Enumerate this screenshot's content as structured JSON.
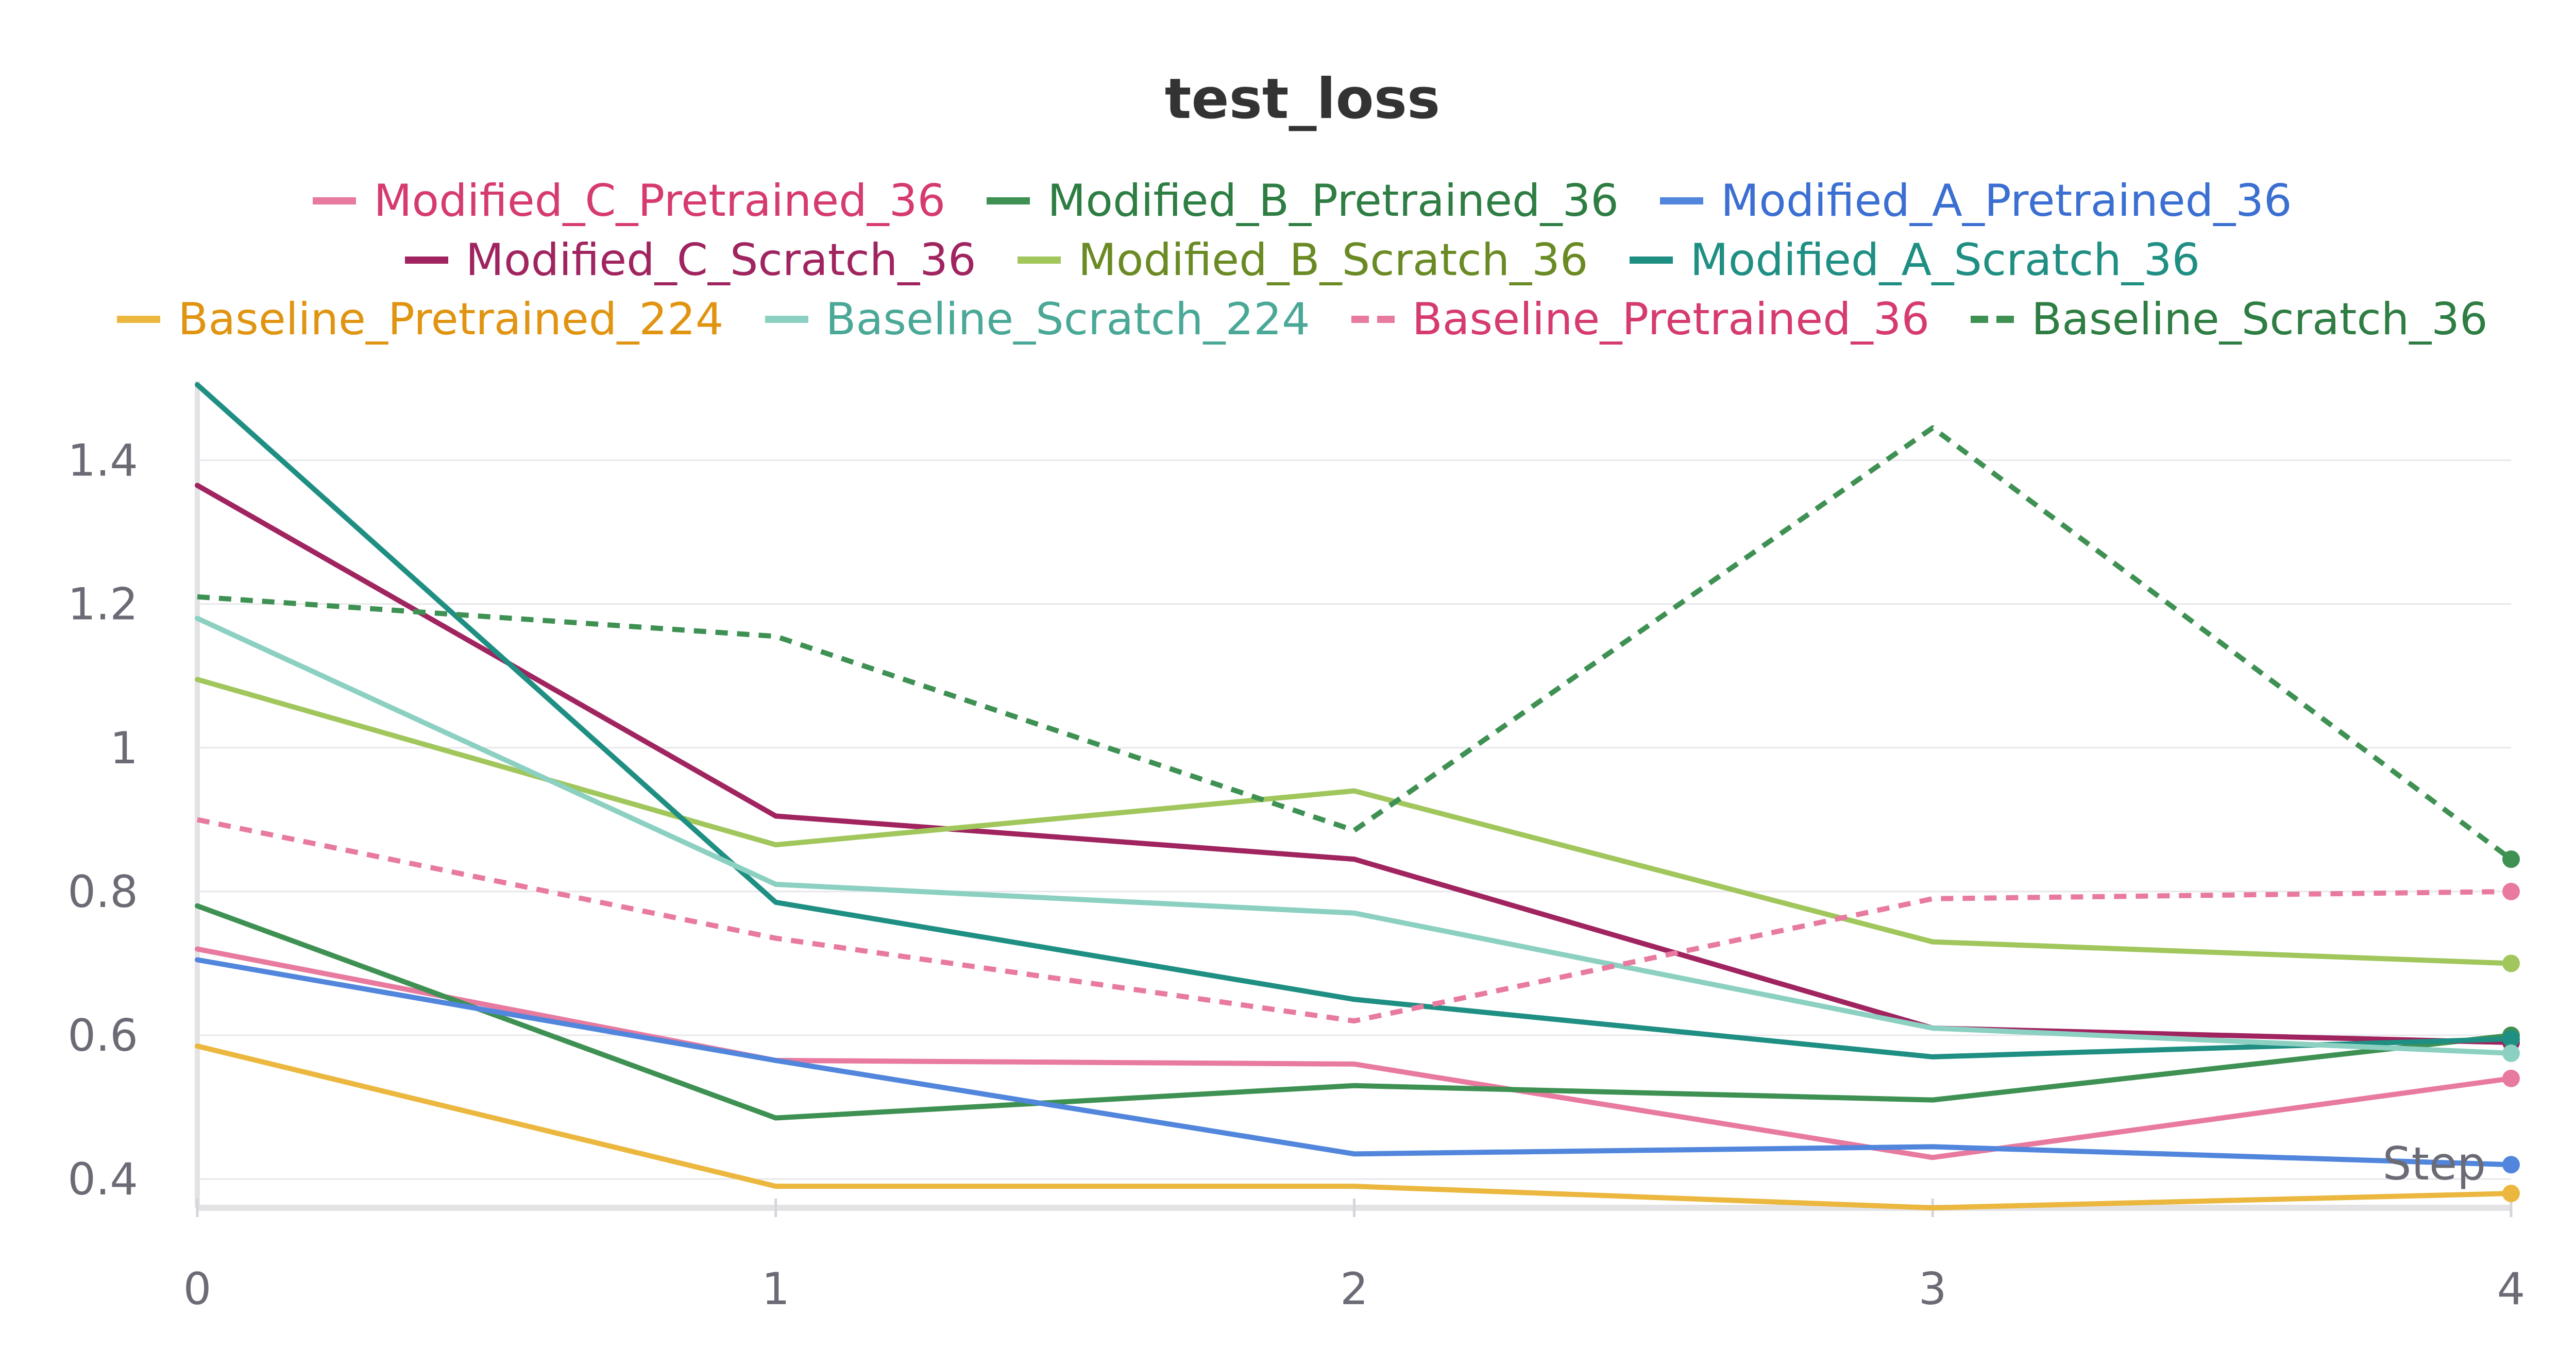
{
  "chart_data": {
    "type": "line",
    "title": "test_loss",
    "xlabel": "Step",
    "ylabel": "",
    "x": [
      0,
      1,
      2,
      3,
      4
    ],
    "x_ticks": [
      "0",
      "1",
      "2",
      "3",
      "4"
    ],
    "y_ticks": [
      "0.4",
      "0.6",
      "0.8",
      "1",
      "1.2",
      "1.4"
    ],
    "xlim": [
      0,
      4
    ],
    "ylim": [
      0.36,
      1.51
    ],
    "grid": true,
    "legend_position": "top",
    "series": [
      {
        "name": "Modified_C_Pretrained_36",
        "color": "#e87a9f",
        "text_color": "#d63b6e",
        "dashed": false,
        "values": [
          0.72,
          0.565,
          0.56,
          0.43,
          0.54
        ]
      },
      {
        "name": "Modified_B_Pretrained_36",
        "color": "#3e9153",
        "text_color": "#2e7d43",
        "dashed": false,
        "values": [
          0.78,
          0.485,
          0.53,
          0.51,
          0.6
        ]
      },
      {
        "name": "Modified_A_Pretrained_36",
        "color": "#5186dc",
        "text_color": "#3b6fd1",
        "dashed": false,
        "values": [
          0.705,
          0.565,
          0.435,
          0.445,
          0.42
        ]
      },
      {
        "name": "Modified_C_Scratch_36",
        "color": "#a0245f",
        "text_color": "#a0245f",
        "dashed": false,
        "values": [
          1.365,
          0.905,
          0.845,
          0.61,
          0.59
        ]
      },
      {
        "name": "Modified_B_Scratch_36",
        "color": "#a0c65c",
        "text_color": "#6a8a23",
        "dashed": false,
        "values": [
          1.095,
          0.865,
          0.94,
          0.73,
          0.7
        ]
      },
      {
        "name": "Modified_A_Scratch_36",
        "color": "#1f8f83",
        "text_color": "#1f8f83",
        "dashed": false,
        "values": [
          1.505,
          0.785,
          0.65,
          0.57,
          0.595
        ]
      },
      {
        "name": "Baseline_Pretrained_224",
        "color": "#ebb73e",
        "text_color": "#e09411",
        "dashed": false,
        "values": [
          0.585,
          0.39,
          0.39,
          0.36,
          0.38
        ]
      },
      {
        "name": "Baseline_Scratch_224",
        "color": "#8cd0c2",
        "text_color": "#4aa897",
        "dashed": false,
        "values": [
          1.18,
          0.81,
          0.77,
          0.61,
          0.575
        ]
      },
      {
        "name": "Baseline_Pretrained_36",
        "color": "#e87a9f",
        "text_color": "#d63b6e",
        "dashed": true,
        "values": [
          0.9,
          0.735,
          0.62,
          0.79,
          0.8
        ]
      },
      {
        "name": "Baseline_Scratch_36",
        "color": "#3e9153",
        "text_color": "#2e7d43",
        "dashed": true,
        "values": [
          1.21,
          1.155,
          0.885,
          1.445,
          0.845
        ]
      }
    ]
  }
}
